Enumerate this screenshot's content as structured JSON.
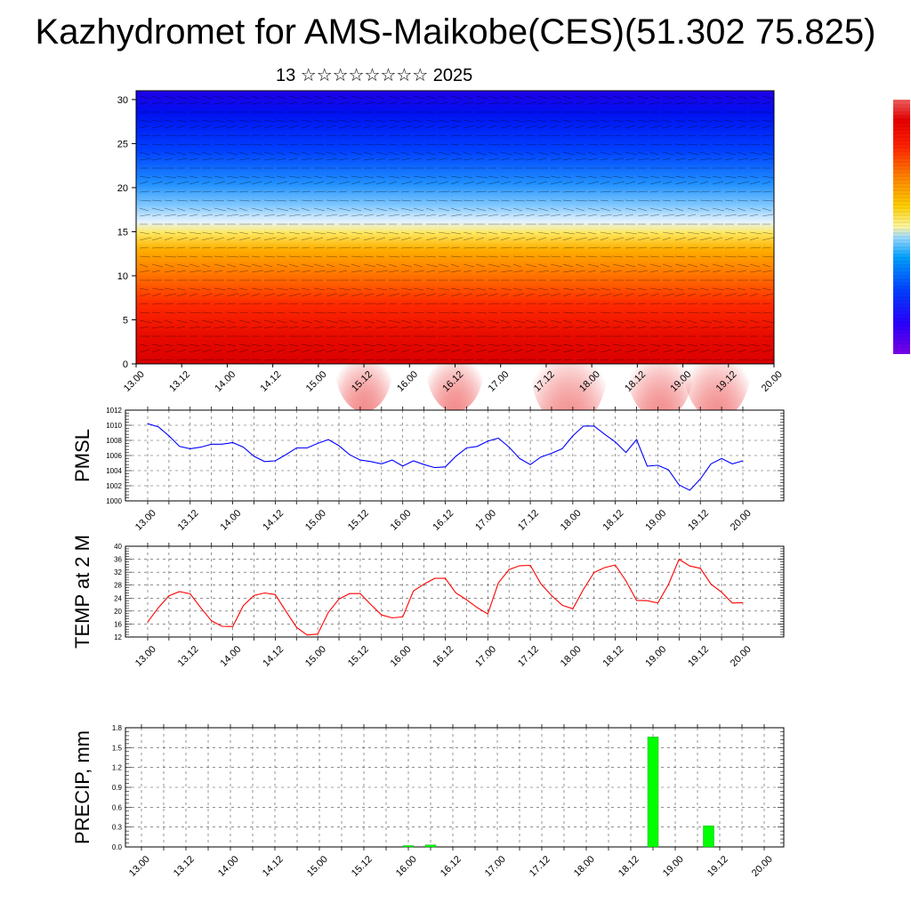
{
  "title": "Kazhydromet for AMS-Maikobe(CES)(51.302 75.825)",
  "subtitle": "13 ☆☆☆☆☆☆☆☆ 2025",
  "colors": {
    "pmsl_line": "#0000ff",
    "temp_line": "#ff0000",
    "precip_bar": "#00ff00",
    "grid": "#000000"
  },
  "chart_data": [
    {
      "type": "heatmap",
      "name": "height-time section",
      "x_tick_labels": [
        "13.00",
        "13.12",
        "14.00",
        "14.12",
        "15.00",
        "15.12",
        "16.00",
        "16.12",
        "17.00",
        "17.12",
        "18.00",
        "18.12",
        "19.00",
        "19.12",
        "20.00"
      ],
      "y_ticks": [
        0,
        5,
        10,
        15,
        20,
        25,
        30
      ],
      "ylim": [
        0,
        31
      ],
      "colorbar": [
        "#7a00e6",
        "#2a00ff",
        "#0040ff",
        "#00a0ff",
        "#9fdcff",
        "#fff7a0",
        "#ffd000",
        "#ff8000",
        "#ff2000",
        "#e60000",
        "#f06060"
      ]
    },
    {
      "type": "line",
      "ylabel": "PMSL",
      "x_tick_labels": [
        "13.00",
        "13.12",
        "14.00",
        "14.12",
        "15.00",
        "15.12",
        "16.00",
        "16.12",
        "17.00",
        "17.12",
        "18.00",
        "18.12",
        "19.00",
        "19.12",
        "20.00"
      ],
      "y_ticks": [
        1000,
        1002,
        1004,
        1006,
        1008,
        1010,
        1012
      ],
      "ylim": [
        1000,
        1012
      ],
      "x": [
        0,
        3,
        6,
        9,
        12,
        15,
        18,
        21,
        24,
        27,
        30,
        33,
        36,
        39,
        42,
        45,
        48,
        51,
        54,
        57,
        60,
        63,
        66,
        69,
        72,
        75,
        78,
        81,
        84,
        87,
        90,
        93,
        96,
        99,
        102,
        105,
        108,
        111,
        114,
        117,
        120,
        123,
        126,
        129,
        132,
        135,
        138,
        141,
        144,
        147,
        150,
        153,
        156,
        159,
        162,
        165,
        168
      ],
      "values": [
        1010.2,
        1009.8,
        1008.6,
        1007.2,
        1006.9,
        1007.1,
        1007.5,
        1007.5,
        1007.7,
        1007.1,
        1005.9,
        1005.2,
        1005.3,
        1006.1,
        1007.0,
        1007.0,
        1007.6,
        1008.1,
        1007.3,
        1006.1,
        1005.4,
        1005.2,
        1004.9,
        1005.4,
        1004.6,
        1005.3,
        1004.8,
        1004.4,
        1004.5,
        1005.9,
        1007.0,
        1007.2,
        1007.9,
        1008.3,
        1007.1,
        1005.6,
        1004.8,
        1005.8,
        1006.3,
        1006.9,
        1008.6,
        1009.9,
        1009.9,
        1008.8,
        1007.8,
        1006.4,
        1008.1,
        1004.6,
        1004.7,
        1004.1,
        1002.1,
        1001.4,
        1002.9,
        1004.9,
        1005.6,
        1004.9,
        1005.3
      ]
    },
    {
      "type": "line",
      "ylabel": "TEMP at 2 M",
      "x_tick_labels": [
        "13.00",
        "13.12",
        "14.00",
        "14.12",
        "15.00",
        "15.12",
        "16.00",
        "16.12",
        "17.00",
        "17.12",
        "18.00",
        "18.12",
        "19.00",
        "19.12",
        "20.00"
      ],
      "y_ticks": [
        12,
        16,
        20,
        24,
        28,
        32,
        36,
        40
      ],
      "ylim": [
        12,
        40
      ],
      "x": [
        0,
        3,
        6,
        9,
        12,
        15,
        18,
        21,
        24,
        27,
        30,
        33,
        36,
        39,
        42,
        45,
        48,
        51,
        54,
        57,
        60,
        63,
        66,
        69,
        72,
        75,
        78,
        81,
        84,
        87,
        90,
        93,
        96,
        99,
        102,
        105,
        108,
        111,
        114,
        117,
        120,
        123,
        126,
        129,
        132,
        135,
        138,
        141,
        144,
        147,
        150,
        153,
        156,
        159,
        162,
        165,
        168
      ],
      "values": [
        16.6,
        21.0,
        24.7,
        26.0,
        25.3,
        21.0,
        17.0,
        15.3,
        15.2,
        21.7,
        24.8,
        25.6,
        25.1,
        20.0,
        15.0,
        12.6,
        12.9,
        19.6,
        23.7,
        25.4,
        25.4,
        22.0,
        18.8,
        17.9,
        18.2,
        26.2,
        28.3,
        30.1,
        30.1,
        25.6,
        23.5,
        21.1,
        19.1,
        28.7,
        32.8,
        34.0,
        34.1,
        28.4,
        24.8,
        21.8,
        20.7,
        26.7,
        31.9,
        33.4,
        34.2,
        29.3,
        23.3,
        23.2,
        22.5,
        28.2,
        36.0,
        33.9,
        33.2,
        28.3,
        25.8,
        22.5,
        22.6
      ]
    },
    {
      "type": "bar",
      "ylabel": "PRECIP, mm",
      "x_tick_labels": [
        "13.00",
        "13.12",
        "14.00",
        "14.12",
        "15.00",
        "15.12",
        "16.00",
        "16.12",
        "17.00",
        "17.12",
        "18.00",
        "18.12",
        "19.00",
        "19.12",
        "20.00"
      ],
      "y_ticks": [
        0.0,
        0.3,
        0.6,
        0.9,
        1.2,
        1.5,
        1.8
      ],
      "y_tick_labels": [
        "0.0",
        "0.3",
        "0.6",
        "0.9",
        "1.2",
        "1.5",
        "1.8"
      ],
      "ylim": [
        0,
        1.8
      ],
      "x": [
        72,
        78,
        138,
        153
      ],
      "values": [
        0.02,
        0.03,
        1.66,
        0.32
      ]
    }
  ]
}
